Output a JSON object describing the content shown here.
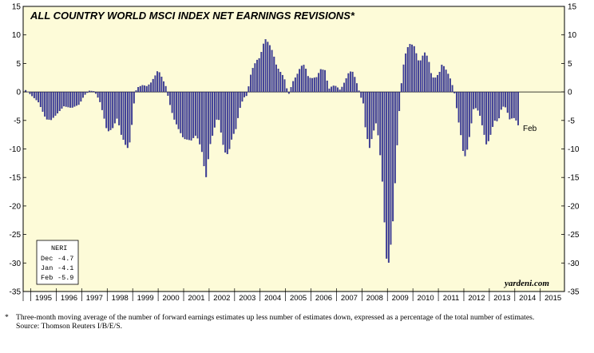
{
  "chart_data": {
    "type": "bar",
    "title": "ALL COUNTRY WORLD MSCI INDEX NET EARNINGS REVISIONS*",
    "xlabel": "",
    "ylabel": "",
    "ylim": [
      -35,
      15
    ],
    "yticks": [
      15,
      10,
      5,
      0,
      -5,
      -10,
      -15,
      -20,
      -25,
      -30,
      -35
    ],
    "x_range": [
      1994.7,
      2015.95
    ],
    "year_labels": [
      "1995",
      "1996",
      "1997",
      "1998",
      "1999",
      "2000",
      "2001",
      "2002",
      "2003",
      "2004",
      "2005",
      "2006",
      "2007",
      "2008",
      "2009",
      "2010",
      "2011",
      "2012",
      "2013",
      "2014",
      "2015"
    ],
    "bar_color": "#3d3d9e",
    "plot_background": "#fdfbd8",
    "grid": false,
    "annotation": "Feb",
    "brand": "yardeni.com",
    "inset": {
      "header": "NERI",
      "rows": [
        {
          "label": "Dec",
          "value": "-4.7"
        },
        {
          "label": "Jan",
          "value": "-4.1"
        },
        {
          "label": "Feb",
          "value": "-5.9"
        }
      ]
    },
    "anchors": [
      [
        1994.8,
        0.3
      ],
      [
        1995.0,
        -0.5
      ],
      [
        1995.3,
        -1.8
      ],
      [
        1995.6,
        -4.8
      ],
      [
        1995.8,
        -4.9
      ],
      [
        1996.0,
        -4.0
      ],
      [
        1996.3,
        -2.5
      ],
      [
        1996.6,
        -2.8
      ],
      [
        1996.9,
        -2.2
      ],
      [
        1997.1,
        -0.6
      ],
      [
        1997.3,
        0.2
      ],
      [
        1997.5,
        0.1
      ],
      [
        1997.7,
        -1.5
      ],
      [
        1997.85,
        -4.0
      ],
      [
        1998.0,
        -7.0
      ],
      [
        1998.2,
        -6.5
      ],
      [
        1998.4,
        -4.5
      ],
      [
        1998.55,
        -7.5
      ],
      [
        1998.75,
        -9.6
      ],
      [
        1998.85,
        -10.0
      ],
      [
        1998.95,
        -6.5
      ],
      [
        1999.05,
        -2.0
      ],
      [
        1999.15,
        0.7
      ],
      [
        1999.4,
        1.2
      ],
      [
        1999.55,
        1.0
      ],
      [
        1999.7,
        1.5
      ],
      [
        1999.9,
        3.0
      ],
      [
        2000.0,
        3.9
      ],
      [
        2000.15,
        2.5
      ],
      [
        2000.3,
        1.0
      ],
      [
        2000.45,
        -2.0
      ],
      [
        2000.6,
        -4.5
      ],
      [
        2000.8,
        -6.5
      ],
      [
        2001.0,
        -8.2
      ],
      [
        2001.3,
        -8.5
      ],
      [
        2001.5,
        -7.5
      ],
      [
        2001.7,
        -10.0
      ],
      [
        2001.8,
        -13.0
      ],
      [
        2001.9,
        -15.3
      ],
      [
        2002.0,
        -10.0
      ],
      [
        2002.2,
        -6.5
      ],
      [
        2002.35,
        -4.0
      ],
      [
        2002.5,
        -8.0
      ],
      [
        2002.6,
        -10.5
      ],
      [
        2002.75,
        -11.0
      ],
      [
        2002.9,
        -8.0
      ],
      [
        2003.05,
        -6.5
      ],
      [
        2003.2,
        -3.0
      ],
      [
        2003.35,
        -1.0
      ],
      [
        2003.5,
        -0.6
      ],
      [
        2003.6,
        2.5
      ],
      [
        2003.7,
        4.0
      ],
      [
        2003.85,
        5.5
      ],
      [
        2004.0,
        6.0
      ],
      [
        2004.1,
        8.0
      ],
      [
        2004.2,
        9.3
      ],
      [
        2004.35,
        8.5
      ],
      [
        2004.5,
        7.0
      ],
      [
        2004.65,
        4.5
      ],
      [
        2004.8,
        3.5
      ],
      [
        2004.95,
        2.5
      ],
      [
        2005.05,
        0.6
      ],
      [
        2005.15,
        -0.5
      ],
      [
        2005.25,
        1.5
      ],
      [
        2005.45,
        3.0
      ],
      [
        2005.6,
        4.5
      ],
      [
        2005.75,
        4.8
      ],
      [
        2005.9,
        2.5
      ],
      [
        2006.05,
        2.4
      ],
      [
        2006.25,
        2.6
      ],
      [
        2006.35,
        4.0
      ],
      [
        2006.55,
        3.8
      ],
      [
        2006.7,
        0.5
      ],
      [
        2006.85,
        1.1
      ],
      [
        2007.0,
        1.0
      ],
      [
        2007.15,
        0.3
      ],
      [
        2007.35,
        2.0
      ],
      [
        2007.5,
        3.6
      ],
      [
        2007.65,
        3.5
      ],
      [
        2007.8,
        1.5
      ],
      [
        2007.95,
        -0.8
      ],
      [
        2008.05,
        -2.0
      ],
      [
        2008.15,
        -7.0
      ],
      [
        2008.3,
        -9.8
      ],
      [
        2008.45,
        -7.0
      ],
      [
        2008.55,
        -5.5
      ],
      [
        2008.65,
        -8.0
      ],
      [
        2008.78,
        -14.0
      ],
      [
        2008.85,
        -20.0
      ],
      [
        2008.92,
        -26.0
      ],
      [
        2009.0,
        -31.5
      ],
      [
        2009.08,
        -29.0
      ],
      [
        2009.2,
        -24.0
      ],
      [
        2009.3,
        -16.0
      ],
      [
        2009.4,
        -8.0
      ],
      [
        2009.5,
        -1.0
      ],
      [
        2009.6,
        4.0
      ],
      [
        2009.75,
        7.5
      ],
      [
        2009.9,
        8.5
      ],
      [
        2010.05,
        8.0
      ],
      [
        2010.25,
        5.0
      ],
      [
        2010.45,
        7.0
      ],
      [
        2010.6,
        6.0
      ],
      [
        2010.75,
        2.5
      ],
      [
        2010.9,
        2.5
      ],
      [
        2011.05,
        3.5
      ],
      [
        2011.15,
        5.0
      ],
      [
        2011.35,
        3.5
      ],
      [
        2011.5,
        2.0
      ],
      [
        2011.65,
        -0.5
      ],
      [
        2011.75,
        -4.0
      ],
      [
        2011.9,
        -8.0
      ],
      [
        2012.0,
        -11.5
      ],
      [
        2012.1,
        -11.0
      ],
      [
        2012.25,
        -7.0
      ],
      [
        2012.4,
        -2.5
      ],
      [
        2012.6,
        -3.5
      ],
      [
        2012.75,
        -6.5
      ],
      [
        2012.9,
        -9.5
      ],
      [
        2013.05,
        -7.5
      ],
      [
        2013.2,
        -5.0
      ],
      [
        2013.35,
        -5.2
      ],
      [
        2013.5,
        -2.5
      ],
      [
        2013.65,
        -2.7
      ],
      [
        2013.8,
        -4.8
      ],
      [
        2013.95,
        -4.5
      ],
      [
        2014.05,
        -5.0
      ],
      [
        2014.14,
        -5.9
      ]
    ]
  }
}
